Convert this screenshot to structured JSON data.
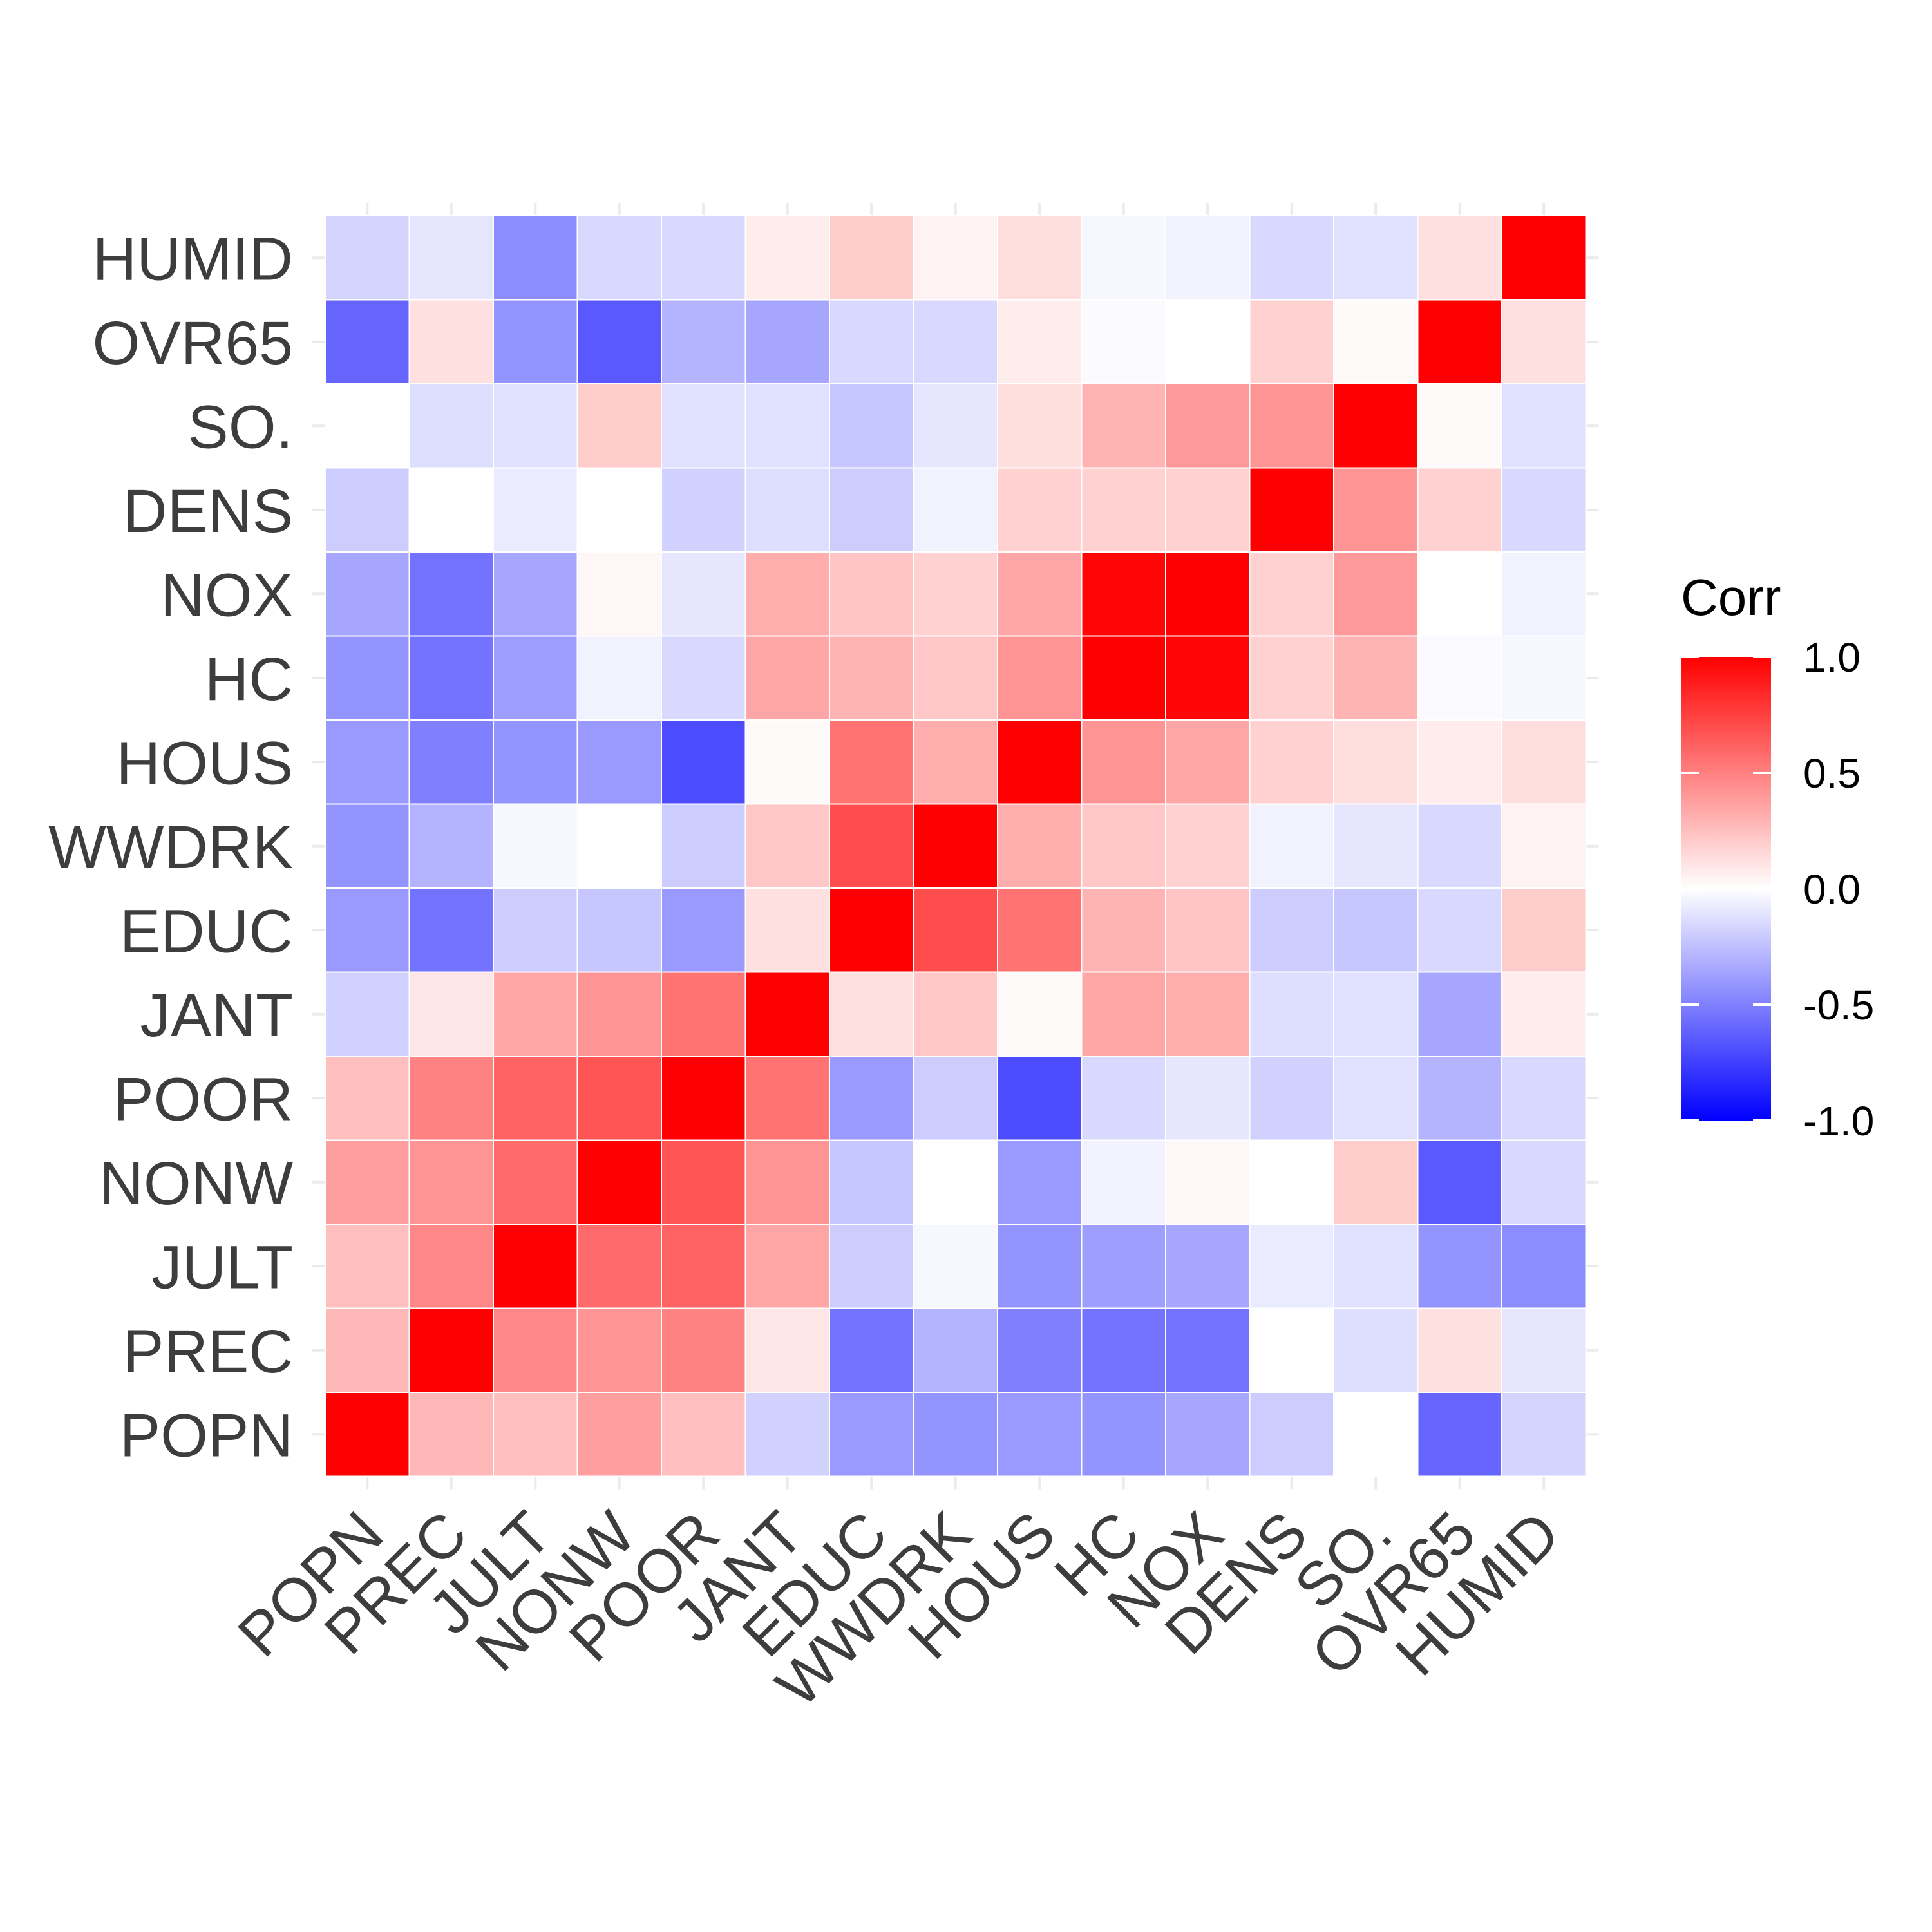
{
  "chart_data": {
    "type": "heatmap",
    "title": "",
    "xlabel": "",
    "ylabel": "",
    "variables": [
      "POPN",
      "PREC",
      "JULT",
      "NONW",
      "POOR",
      "JANT",
      "EDUC",
      "WWDRK",
      "HOUS",
      "HC",
      "NOX",
      "DENS",
      "SO.",
      "OVR65",
      "HUMID"
    ],
    "matrix": [
      [
        1.0,
        0.28,
        0.25,
        0.38,
        0.25,
        -0.18,
        -0.4,
        -0.42,
        -0.4,
        -0.42,
        -0.35,
        -0.2,
        0.0,
        -0.6,
        -0.17
      ],
      [
        0.28,
        1.0,
        0.47,
        0.42,
        0.49,
        0.1,
        -0.55,
        -0.3,
        -0.5,
        -0.55,
        -0.55,
        0.0,
        -0.13,
        0.12,
        -0.1
      ],
      [
        0.25,
        0.47,
        1.0,
        0.58,
        0.61,
        0.35,
        -0.2,
        -0.03,
        -0.42,
        -0.38,
        -0.35,
        -0.08,
        -0.12,
        -0.42,
        -0.45
      ],
      [
        0.38,
        0.42,
        0.58,
        1.0,
        0.67,
        0.42,
        -0.22,
        0.0,
        -0.4,
        -0.05,
        0.03,
        0.0,
        0.2,
        -0.65,
        -0.15
      ],
      [
        0.25,
        0.49,
        0.61,
        0.67,
        1.0,
        0.55,
        -0.4,
        -0.2,
        -0.7,
        -0.15,
        -0.1,
        -0.18,
        -0.12,
        -0.3,
        -0.15
      ],
      [
        -0.18,
        0.1,
        0.35,
        0.42,
        0.55,
        1.0,
        0.12,
        0.22,
        0.02,
        0.35,
        0.32,
        -0.13,
        -0.12,
        -0.35,
        0.07
      ],
      [
        -0.4,
        -0.55,
        -0.2,
        -0.22,
        -0.4,
        0.12,
        1.0,
        0.7,
        0.55,
        0.3,
        0.23,
        -0.2,
        -0.22,
        -0.15,
        0.2
      ],
      [
        -0.42,
        -0.3,
        -0.03,
        0.0,
        -0.2,
        0.22,
        0.7,
        1.0,
        0.32,
        0.22,
        0.18,
        -0.05,
        -0.1,
        -0.15,
        0.05
      ],
      [
        -0.4,
        -0.5,
        -0.42,
        -0.4,
        -0.7,
        0.02,
        0.55,
        0.32,
        1.0,
        0.42,
        0.35,
        0.18,
        0.13,
        0.07,
        0.13
      ],
      [
        -0.42,
        -0.55,
        -0.38,
        -0.05,
        -0.15,
        0.35,
        0.3,
        0.22,
        0.42,
        1.0,
        0.98,
        0.18,
        0.3,
        -0.02,
        -0.03
      ],
      [
        -0.35,
        -0.55,
        -0.35,
        0.03,
        -0.1,
        0.32,
        0.23,
        0.18,
        0.35,
        0.98,
        1.0,
        0.18,
        0.4,
        0.0,
        -0.05
      ],
      [
        -0.2,
        0.0,
        -0.08,
        0.0,
        -0.18,
        -0.13,
        -0.2,
        -0.05,
        0.18,
        0.18,
        0.18,
        1.0,
        0.42,
        0.18,
        -0.15
      ],
      [
        0.0,
        -0.13,
        -0.12,
        0.2,
        -0.12,
        -0.12,
        -0.22,
        -0.1,
        0.13,
        0.3,
        0.4,
        0.42,
        1.0,
        0.02,
        -0.12
      ],
      [
        -0.6,
        0.12,
        -0.42,
        -0.65,
        -0.3,
        -0.35,
        -0.15,
        -0.15,
        0.07,
        -0.02,
        0.0,
        0.18,
        0.02,
        1.0,
        0.12
      ],
      [
        -0.17,
        -0.1,
        -0.45,
        -0.15,
        -0.15,
        0.07,
        0.2,
        0.05,
        0.13,
        -0.03,
        -0.05,
        -0.15,
        -0.12,
        0.12,
        1.0
      ]
    ],
    "color_scale": {
      "low": "#0000FF",
      "mid": "#FFFFFF",
      "high": "#FF0000",
      "limits": [
        -1.0,
        1.0
      ]
    },
    "legend": {
      "title": "Corr",
      "placement": "right",
      "ticks": [
        "1.0",
        "0.5",
        "0.0",
        "-0.5",
        "-1.0"
      ],
      "tick_values": [
        1.0,
        0.5,
        0.0,
        -0.5,
        -1.0
      ]
    },
    "grid": true
  }
}
